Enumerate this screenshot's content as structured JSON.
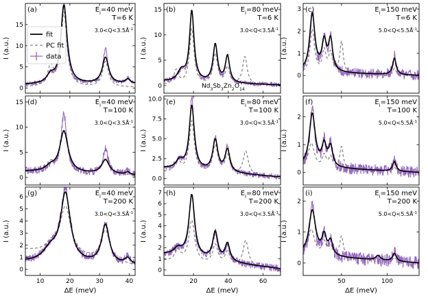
{
  "chart_data": {
    "type": "line",
    "grid": "3x3",
    "legend": {
      "position": "top-left of panel (a)",
      "entries": [
        {
          "key": "fit",
          "label": "fit",
          "color": "#000000",
          "style": "solid"
        },
        {
          "key": "pc",
          "label": "PC fit",
          "color": "#888888",
          "style": "dashed"
        },
        {
          "key": "data",
          "label": "data",
          "color": "#9467bd",
          "style": "errorbar"
        }
      ]
    },
    "compound_label": "Nd$_3$Sb$_3$Zn$_2$O$_{14}$",
    "compound_main": "Nd",
    "compound_parts": [
      {
        "text": "Nd",
        "sub": false
      },
      {
        "text": "3",
        "sub": true
      },
      {
        "text": "Sb",
        "sub": false
      },
      {
        "text": "3",
        "sub": true
      },
      {
        "text": "Zn",
        "sub": false
      },
      {
        "text": "2",
        "sub": true
      },
      {
        "text": "O",
        "sub": false
      },
      {
        "text": "14",
        "sub": true
      }
    ],
    "ylabel": "I (a.u.)",
    "xlabel": "ΔE (meV)",
    "columns": [
      {
        "xlim": [
          5,
          42
        ],
        "xticks": [
          10,
          20,
          30,
          40
        ],
        "xticklabels": [
          "10",
          "20",
          "30",
          "40"
        ],
        "ei": "E$_i$=40 meV",
        "q": "3.0<Q<3.5Å$^{-1}$"
      },
      {
        "xlim": [
          3,
          70
        ],
        "xticks": [
          20,
          40,
          60
        ],
        "xticklabels": [
          "20",
          "40",
          "60"
        ],
        "ei": "E$_i$=80 meV",
        "q": "3.0<Q<3.5Å$^{-1}$"
      },
      {
        "xlim": [
          8,
          135
        ],
        "xticks": [
          50,
          100
        ],
        "xticklabels": [
          "50",
          "100"
        ],
        "ei": "E$_i$=150 meV",
        "q": "5.0<Q<5.5Å$^{-1}$"
      }
    ],
    "panels": [
      {
        "label": "(a)",
        "temp": "T=6 K",
        "ylim": [
          -1.2,
          20
        ],
        "yticks": [
          0,
          5,
          10,
          15
        ],
        "yticklabels": [
          "0",
          "5",
          "10",
          "15"
        ],
        "fit": {
          "base": 0.8,
          "baseEnd": 1.0,
          "peaks": [
            [
              13.5,
              1.8,
              1.5
            ],
            [
              18,
              18.5,
              1.3
            ],
            [
              32,
              6.2,
              1.3
            ],
            [
              39.5,
              1.0,
              1.0
            ]
          ]
        },
        "pc": {
          "base": 0.2,
          "baseEnd": 0.2,
          "peaks": [
            [
              13.5,
              4.5,
              1.2
            ],
            [
              18,
              17.5,
              1.2
            ],
            [
              32,
              6.0,
              1.2
            ]
          ]
        },
        "data": {
          "base": 0.8,
          "baseEnd": 1.0,
          "noise": 0.45,
          "peaks": [
            [
              13.5,
              2.0,
              1.5
            ],
            [
              18,
              19.5,
              1.1
            ],
            [
              32,
              8.2,
              1.0
            ],
            [
              39.5,
              1.3,
              0.8
            ]
          ]
        }
      },
      {
        "label": "(b)",
        "temp": "T=6 K",
        "ylim": [
          -1.5,
          16.2
        ],
        "yticks": [
          0,
          5,
          10,
          15
        ],
        "yticklabels": [
          "0",
          "5",
          "10",
          "15"
        ],
        "fit": {
          "base": 0.8,
          "baseEnd": 0.1,
          "peaks": [
            [
              13,
              2.0,
              2.5
            ],
            [
              19,
              13.8,
              1.6
            ],
            [
              32.5,
              7.4,
              1.6
            ],
            [
              39.5,
              5.2,
              1.5
            ]
          ]
        },
        "pc": {
          "base": 0.1,
          "baseEnd": 0.1,
          "peaks": [
            [
              10,
              2.8,
              1.6
            ],
            [
              19,
              11.0,
              1.6
            ],
            [
              32.5,
              6.0,
              1.6
            ],
            [
              39.5,
              3.3,
              1.4
            ],
            [
              49.5,
              5.5,
              1.6
            ]
          ]
        },
        "data": {
          "base": 0.8,
          "baseEnd": 0.1,
          "noise": 0.45,
          "peaks": [
            [
              13,
              2.0,
              2.5
            ],
            [
              19,
              14.0,
              1.4
            ],
            [
              32.5,
              7.6,
              1.4
            ],
            [
              39.5,
              5.6,
              1.3
            ]
          ]
        }
      },
      {
        "label": "(c)",
        "temp": "T=6 K",
        "ylim": [
          -0.8,
          3.25
        ],
        "yticks": [
          0,
          1,
          2,
          3
        ],
        "yticklabels": [
          "0",
          "1",
          "2",
          "3"
        ],
        "fit": {
          "base": 0.15,
          "baseEnd": 0.0,
          "peaks": [
            [
              18,
              2.6,
              3.5
            ],
            [
              31,
              1.3,
              3.0
            ],
            [
              38,
              1.4,
              2.8
            ],
            [
              108,
              0.75,
              2.3
            ]
          ]
        },
        "pc": {
          "base": 0.05,
          "baseEnd": 0.0,
          "peaks": [
            [
              18,
              2.0,
              3.0
            ],
            [
              31,
              1.0,
              2.5
            ],
            [
              38,
              0.9,
              2.5
            ],
            [
              50,
              1.45,
              2.3
            ],
            [
              108,
              0.3,
              2.2
            ]
          ]
        },
        "data": {
          "base": 0.15,
          "baseEnd": 0.0,
          "noise": 0.22,
          "peaks": [
            [
              18,
              2.7,
              3.0
            ],
            [
              31,
              1.5,
              2.6
            ],
            [
              38,
              1.5,
              2.4
            ],
            [
              108,
              0.9,
              1.8
            ]
          ]
        }
      },
      {
        "label": "(d)",
        "temp": "T=100 K",
        "ylim": [
          -1.5,
          16.2
        ],
        "yticks": [
          0,
          5,
          10,
          15
        ],
        "yticklabels": [
          "0",
          "5",
          "10",
          "15"
        ],
        "fit": {
          "base": 1.2,
          "baseEnd": 0.4,
          "peaks": [
            [
              13.5,
              1.0,
              2.0
            ],
            [
              18,
              8.2,
              1.7
            ],
            [
              32,
              2.8,
              1.6
            ],
            [
              39.5,
              0.5,
              1.0
            ]
          ]
        },
        "pc": {
          "base": 1.0,
          "baseEnd": 0.4,
          "peaks": [
            [
              13.5,
              1.5,
              1.5
            ],
            [
              18,
              8.0,
              1.8
            ],
            [
              32,
              3.0,
              1.6
            ]
          ]
        },
        "data": {
          "base": 1.2,
          "baseEnd": 0.4,
          "noise": 0.7,
          "peaks": [
            [
              13.5,
              1.2,
              1.8
            ],
            [
              18,
              11.5,
              1.2
            ],
            [
              32,
              5.0,
              1.1
            ],
            [
              39.5,
              0.7,
              1.0
            ]
          ]
        }
      },
      {
        "label": "(e)",
        "temp": "T=100 K",
        "ylim": [
          -0.8,
          10.4
        ],
        "yticks": [
          0.0,
          2.5,
          5.0,
          7.5,
          10.0
        ],
        "yticklabels": [
          "0.0",
          "2.5",
          "5.0",
          "7.5",
          "10.0"
        ],
        "fit": {
          "base": 1.3,
          "baseEnd": 0.2,
          "peaks": [
            [
              12,
              1.0,
              2.5
            ],
            [
              19,
              8.0,
              1.8
            ],
            [
              32.5,
              3.9,
              1.8
            ],
            [
              39.5,
              2.8,
              1.7
            ]
          ]
        },
        "pc": {
          "base": 0.8,
          "baseEnd": 0.2,
          "peaks": [
            [
              11,
              1.5,
              1.8
            ],
            [
              19,
              6.5,
              1.8
            ],
            [
              32.5,
              3.5,
              1.8
            ],
            [
              39.5,
              2.3,
              1.7
            ],
            [
              50,
              3.0,
              1.8
            ]
          ]
        },
        "data": {
          "base": 1.3,
          "baseEnd": 0.2,
          "noise": 0.35,
          "peaks": [
            [
              12,
              1.0,
              2.5
            ],
            [
              19,
              9.0,
              1.5
            ],
            [
              32.5,
              4.4,
              1.5
            ],
            [
              39.5,
              3.3,
              1.4
            ]
          ]
        }
      },
      {
        "label": "(f)",
        "temp": "T=100 K",
        "ylim": [
          -0.45,
          2.75
        ],
        "yticks": [
          0,
          1,
          2
        ],
        "yticklabels": [
          "0",
          "1",
          "2"
        ],
        "fit": {
          "base": 0.2,
          "baseEnd": 0.0,
          "peaks": [
            [
              18,
              1.9,
              4.0
            ],
            [
              31,
              0.75,
              3.0
            ],
            [
              38,
              0.7,
              2.8
            ],
            [
              108,
              0.35,
              2.3
            ]
          ]
        },
        "pc": {
          "base": 0.15,
          "baseEnd": 0.0,
          "peaks": [
            [
              17,
              0.9,
              4.0
            ],
            [
              31,
              0.45,
              2.5
            ],
            [
              38,
              0.4,
              2.5
            ],
            [
              50,
              0.8,
              2.3
            ],
            [
              108,
              0.15,
              2.2
            ]
          ]
        },
        "data": {
          "base": 0.2,
          "baseEnd": 0.0,
          "noise": 0.2,
          "peaks": [
            [
              18,
              2.1,
              3.2
            ],
            [
              31,
              0.9,
              2.5
            ],
            [
              38,
              0.85,
              2.4
            ],
            [
              108,
              0.4,
              1.8
            ]
          ]
        }
      },
      {
        "label": "(g)",
        "temp": "T=200 K",
        "ylim": [
          -0.5,
          6.8
        ],
        "yticks": [
          0,
          1,
          2,
          3,
          4,
          5,
          6
        ],
        "yticklabels": [
          "0",
          "1",
          "2",
          "3",
          "4",
          "5",
          "6"
        ],
        "fit": {
          "base": 0.6,
          "baseEnd": 0.3,
          "peaks": [
            [
              13.5,
              1.0,
              3.0
            ],
            [
              18.5,
              5.6,
              2.0
            ],
            [
              32,
              3.2,
              1.6
            ],
            [
              39.5,
              0.5,
              1.2
            ]
          ]
        },
        "pc": {
          "base": 1.6,
          "baseEnd": 0.3,
          "peaks": [
            [
              13.5,
              0.6,
              2.0
            ],
            [
              18.5,
              4.0,
              2.2
            ],
            [
              32,
              2.5,
              1.8
            ]
          ]
        },
        "data": {
          "base": 0.6,
          "baseEnd": 0.3,
          "noise": 0.3,
          "peaks": [
            [
              13.5,
              1.0,
              3.0
            ],
            [
              18.5,
              5.9,
              2.0
            ],
            [
              32,
              3.3,
              1.5
            ],
            [
              39.5,
              0.6,
              1.0
            ]
          ]
        }
      },
      {
        "label": "(h)",
        "temp": "T=200 K",
        "ylim": [
          -0.5,
          7.5
        ],
        "yticks": [
          0,
          1,
          2,
          3,
          4,
          5,
          6,
          7
        ],
        "yticklabels": [
          "0",
          "1",
          "2",
          "3",
          "4",
          "5",
          "6",
          "7"
        ],
        "fit": {
          "base": 1.4,
          "baseEnd": 0.1,
          "peaks": [
            [
              11,
              0.6,
              3.0
            ],
            [
              19,
              5.6,
              2.0
            ],
            [
              32.5,
              2.5,
              1.8
            ],
            [
              39.5,
              1.6,
              1.7
            ]
          ]
        },
        "pc": {
          "base": 0.8,
          "baseEnd": 0.1,
          "peaks": [
            [
              11,
              1.0,
              2.0
            ],
            [
              19,
              3.8,
              2.0
            ],
            [
              32.5,
              1.7,
              1.8
            ],
            [
              39.5,
              1.1,
              1.7
            ],
            [
              50,
              2.3,
              1.8
            ]
          ]
        },
        "data": {
          "base": 1.4,
          "baseEnd": 0.1,
          "noise": 0.32,
          "peaks": [
            [
              11,
              0.6,
              3.0
            ],
            [
              19,
              5.7,
              1.8
            ],
            [
              32.5,
              2.4,
              1.7
            ],
            [
              39.5,
              1.5,
              1.6
            ]
          ]
        }
      },
      {
        "label": "(i)",
        "temp": "T=200 K",
        "ylim": [
          -0.4,
          2.45
        ],
        "yticks": [
          0,
          1,
          2
        ],
        "yticklabels": [
          "0",
          "1",
          "2"
        ],
        "fit": {
          "base": 0.25,
          "baseEnd": 0.0,
          "peaks": [
            [
              18,
              1.45,
              4.5
            ],
            [
              31,
              0.6,
              3.0
            ],
            [
              38,
              0.45,
              2.8
            ],
            [
              90,
              0.15,
              3.0
            ],
            [
              108,
              0.25,
              2.5
            ]
          ]
        },
        "pc": {
          "base": 0.3,
          "baseEnd": 0.0,
          "peaks": [
            [
              17,
              0.8,
              4.0
            ],
            [
              31,
              0.4,
              2.5
            ],
            [
              38,
              0.3,
              2.5
            ],
            [
              50,
              0.65,
              2.3
            ],
            [
              108,
              0.12,
              2.2
            ]
          ]
        },
        "data": {
          "base": 0.25,
          "baseEnd": 0.0,
          "noise": 0.2,
          "peaks": [
            [
              18,
              1.6,
              3.5
            ],
            [
              31,
              0.7,
              2.5
            ],
            [
              38,
              0.5,
              2.4
            ],
            [
              108,
              0.3,
              2.0
            ]
          ]
        }
      }
    ]
  },
  "colors": {
    "fit": "#000000",
    "pc": "#888888",
    "data": "#9467bd"
  }
}
